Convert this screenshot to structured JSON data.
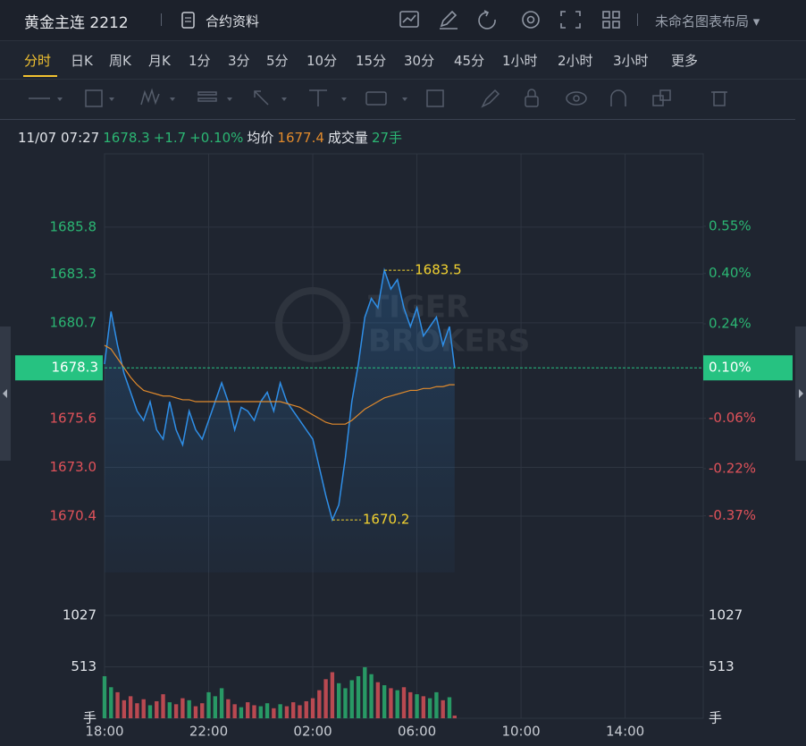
{
  "header": {
    "title": "黄金主连 2212",
    "contract": "合约资料",
    "layout": "未命名图表布局"
  },
  "periods": [
    "分时",
    "日K",
    "周K",
    "月K",
    "1分",
    "3分",
    "5分",
    "10分",
    "15分",
    "30分",
    "45分",
    "1小时",
    "2小时",
    "3小时",
    "更多"
  ],
  "info": {
    "time": "11/07 07:27",
    "change": "+1.7",
    "pct": "+0.10%",
    "avg_label": "均价",
    "avg": "1677.4",
    "vol_label": "成交量",
    "vol": "27手"
  },
  "watermark": [
    "TIGER",
    "BROKERS"
  ],
  "chart_data": {
    "type": "line",
    "x": [
      "18:00",
      "18:15",
      "18:30",
      "18:45",
      "19:00",
      "19:15",
      "19:30",
      "19:45",
      "20:00",
      "20:15",
      "20:30",
      "20:45",
      "21:00",
      "21:15",
      "21:30",
      "21:45",
      "22:00",
      "22:15",
      "22:30",
      "22:45",
      "23:00",
      "23:15",
      "23:30",
      "23:45",
      "00:00",
      "00:15",
      "00:30",
      "00:45",
      "01:00",
      "01:15",
      "01:30",
      "01:45",
      "02:00",
      "02:15",
      "02:30",
      "02:45",
      "03:00",
      "03:15",
      "03:30",
      "03:45",
      "04:00",
      "04:15",
      "04:30",
      "04:45",
      "05:00",
      "05:15",
      "05:30",
      "05:45",
      "06:00",
      "06:15",
      "06:30",
      "06:45",
      "07:00",
      "07:15",
      "07:27"
    ],
    "series": [
      {
        "color": "#2f8fe8",
        "values": [
          1678.5,
          1681.3,
          1679.5,
          1678,
          1677,
          1676,
          1675.5,
          1676.5,
          1675,
          1674.5,
          1676.5,
          1675,
          1674.2,
          1676,
          1675,
          1674.5,
          1675.5,
          1676.5,
          1677.5,
          1676.5,
          1675,
          1676.2,
          1676,
          1675.5,
          1676.5,
          1677,
          1676,
          1677.5,
          1676.5,
          1676,
          1675.5,
          1675,
          1674.5,
          1673,
          1671.5,
          1670.2,
          1671,
          1673.5,
          1676.5,
          1678.5,
          1681,
          1682,
          1681.5,
          1683.5,
          1682.5,
          1683,
          1681.5,
          1680.5,
          1681.5,
          1680,
          1680.5,
          1681,
          1679.5,
          1680.5,
          1678.3
        ]
      },
      {
        "color": "#e08a2c",
        "values": [
          1679.5,
          1679.3,
          1678.8,
          1678.3,
          1677.8,
          1677.4,
          1677.1,
          1677,
          1676.9,
          1676.8,
          1676.8,
          1676.7,
          1676.6,
          1676.6,
          1676.5,
          1676.5,
          1676.5,
          1676.5,
          1676.5,
          1676.5,
          1676.5,
          1676.5,
          1676.5,
          1676.5,
          1676.5,
          1676.5,
          1676.5,
          1676.5,
          1676.4,
          1676.3,
          1676.2,
          1676,
          1675.8,
          1675.6,
          1675.4,
          1675.3,
          1675.3,
          1675.3,
          1675.5,
          1675.8,
          1676.1,
          1676.3,
          1676.5,
          1676.7,
          1676.8,
          1676.9,
          1677,
          1677.1,
          1677.1,
          1677.2,
          1677.2,
          1677.3,
          1677.3,
          1677.4,
          1677.4
        ]
      }
    ],
    "volume": {
      "values": [
        420,
        310,
        260,
        180,
        220,
        150,
        190,
        130,
        170,
        240,
        160,
        140,
        200,
        180,
        120,
        150,
        260,
        220,
        300,
        190,
        140,
        110,
        160,
        130,
        120,
        150,
        100,
        140,
        120,
        160,
        130,
        170,
        200,
        280,
        390,
        460,
        350,
        300,
        380,
        420,
        510,
        440,
        360,
        330,
        300,
        280,
        310,
        260,
        240,
        220,
        200,
        260,
        180,
        210,
        27
      ],
      "up_color": "#2bb673",
      "down_color": "#e0525a",
      "ylim": [
        0,
        1170
      ],
      "yticks": [
        {
          "value": 0,
          "label": "手"
        },
        513,
        1027
      ]
    },
    "xlim": [
      "18:00",
      "17:00"
    ],
    "xticks": [
      "18:00",
      "22:00",
      "02:00",
      "06:00",
      "10:00",
      "14:00"
    ],
    "ylim": [
      1667.4,
      1689.7
    ],
    "yticks": [
      1670.4,
      {
        "value": 1673,
        "label": "1673.0"
      },
      1675.6,
      1680.7,
      1683.3,
      1685.8
    ],
    "y2lim": [
      -0.55,
      0.78
    ],
    "y2ticks": [
      {
        "value": -0.37,
        "label": "-0.37%"
      },
      {
        "value": -0.22,
        "label": "-0.22%"
      },
      {
        "value": -0.06,
        "label": "-0.06%"
      },
      {
        "value": 0.24,
        "label": "0.24%"
      },
      {
        "value": 0.4,
        "label": "0.40%"
      },
      {
        "value": 0.55,
        "label": "0.55%"
      }
    ],
    "last": {
      "value": 1678.3,
      "pct_label": "0.10%"
    },
    "annotations": [
      {
        "x": "04:45",
        "value": 1683.5
      },
      {
        "x": "02:45",
        "value": 1670.2
      }
    ],
    "up_color": "#2bb673",
    "down_color": "#e0525a",
    "tag_color": "#26c281",
    "grid": true
  }
}
